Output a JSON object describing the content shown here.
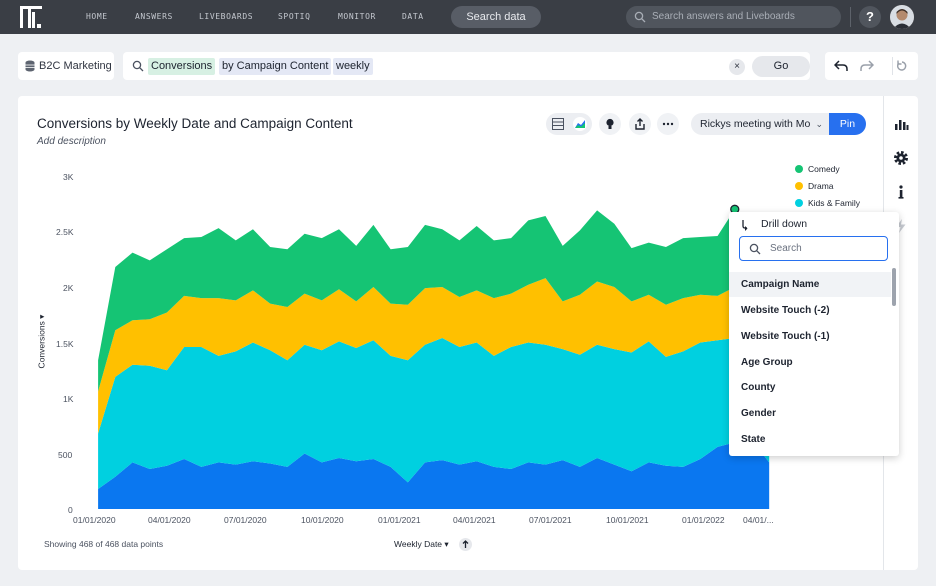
{
  "nav": {
    "items": [
      "HOME",
      "ANSWERS",
      "LIVEBOARDS",
      "SPOTIQ",
      "MONITOR",
      "DATA"
    ],
    "search_data": "Search data",
    "search_placeholder": "Search answers and Liveboards",
    "help": "?"
  },
  "search_bar": {
    "source": "B2C Marketing",
    "tokens": [
      "Conversions",
      "by Campaign Content",
      "weekly"
    ],
    "clear": "×",
    "go": "Go"
  },
  "answer": {
    "title": "Conversions by Weekly Date and Campaign Content",
    "description_placeholder": "Add description",
    "liveboard_select": "Rickys meeting with Mo",
    "pin": "Pin",
    "footer": "Showing 468 of 468 data points",
    "x_axis_label": "Weekly Date",
    "y_axis_label": "Conversions"
  },
  "drill_down": {
    "title": "Drill down",
    "search_placeholder": "Search",
    "items": [
      "Campaign Name",
      "Website Touch (-2)",
      "Website Touch (-1)",
      "Age Group",
      "County",
      "Gender",
      "State"
    ]
  },
  "colors": {
    "nav_bg": "#3a3e45",
    "comedy": "#15c474",
    "drama": "#ffc000",
    "kids_family": "#00d0e0",
    "fourth_series": "#0a77f0",
    "accent": "#2770ef"
  },
  "icons": {
    "side": [
      "bar-chart-icon",
      "gear-icon",
      "info-icon",
      "lightning-icon"
    ]
  },
  "chart_data": {
    "type": "area",
    "stacked": true,
    "title": "Conversions by Weekly Date and Campaign Content",
    "xlabel": "Weekly Date",
    "ylabel": "Conversions",
    "x_ticks": [
      "01/01/2020",
      "04/01/2020",
      "07/01/2020",
      "10/01/2020",
      "01/01/2021",
      "04/01/2021",
      "07/01/2021",
      "10/01/2021",
      "01/01/2022",
      "04/01/..."
    ],
    "y_ticks": [
      "0",
      "500",
      "1K",
      "1.5K",
      "2K",
      "2.5K",
      "3K"
    ],
    "ylim": [
      0,
      3000
    ],
    "legend_position": "top-right",
    "x": [
      "2020-01-06",
      "2020-01-27",
      "2020-02-17",
      "2020-03-09",
      "2020-03-30",
      "2020-04-20",
      "2020-05-11",
      "2020-06-01",
      "2020-06-22",
      "2020-07-13",
      "2020-08-03",
      "2020-08-24",
      "2020-09-14",
      "2020-10-05",
      "2020-10-26",
      "2020-11-16",
      "2020-12-07",
      "2020-12-28",
      "2021-01-18",
      "2021-02-08",
      "2021-03-01",
      "2021-03-22",
      "2021-04-12",
      "2021-05-03",
      "2021-05-24",
      "2021-06-14",
      "2021-07-05",
      "2021-07-26",
      "2021-08-16",
      "2021-09-06",
      "2021-09-27",
      "2021-10-18",
      "2021-11-08",
      "2021-11-29",
      "2021-12-20",
      "2022-01-10",
      "2022-01-31",
      "2022-02-21",
      "2022-03-14",
      "2022-04-04"
    ],
    "series": [
      {
        "name": "",
        "values": [
          180,
          290,
          420,
          360,
          390,
          450,
          380,
          420,
          400,
          430,
          410,
          380,
          500,
          420,
          460,
          430,
          450,
          380,
          240,
          420,
          440,
          400,
          430,
          380,
          360,
          420,
          400,
          440,
          380,
          460,
          400,
          340,
          420,
          390,
          380,
          450,
          560,
          600,
          620,
          420
        ]
      },
      {
        "name": "Kids & Family",
        "values": [
          500,
          900,
          880,
          930,
          860,
          1010,
          1080,
          960,
          1020,
          1070,
          1020,
          960,
          980,
          1010,
          1050,
          1020,
          1070,
          1000,
          1100,
          1060,
          1100,
          1060,
          1070,
          1000,
          1100,
          1080,
          1080,
          1000,
          1010,
          1020,
          1040,
          1070,
          1090,
          980,
          1040,
          1050,
          960,
          940,
          900,
          940
        ]
      },
      {
        "name": "Drama",
        "values": [
          380,
          420,
          400,
          420,
          520,
          460,
          440,
          520,
          460,
          470,
          420,
          480,
          460,
          450,
          470,
          420,
          480,
          470,
          500,
          510,
          460,
          450,
          470,
          520,
          480,
          520,
          600,
          430,
          540,
          570,
          560,
          460,
          420,
          470,
          480,
          430,
          400,
          460,
          440,
          400
        ]
      },
      {
        "name": "Comedy",
        "values": [
          280,
          570,
          610,
          530,
          570,
          520,
          550,
          630,
          540,
          550,
          510,
          520,
          540,
          560,
          540,
          500,
          560,
          490,
          520,
          570,
          520,
          510,
          580,
          520,
          500,
          580,
          560,
          500,
          580,
          640,
          570,
          480,
          470,
          520,
          540,
          520,
          540,
          700,
          580,
          500
        ]
      }
    ]
  }
}
